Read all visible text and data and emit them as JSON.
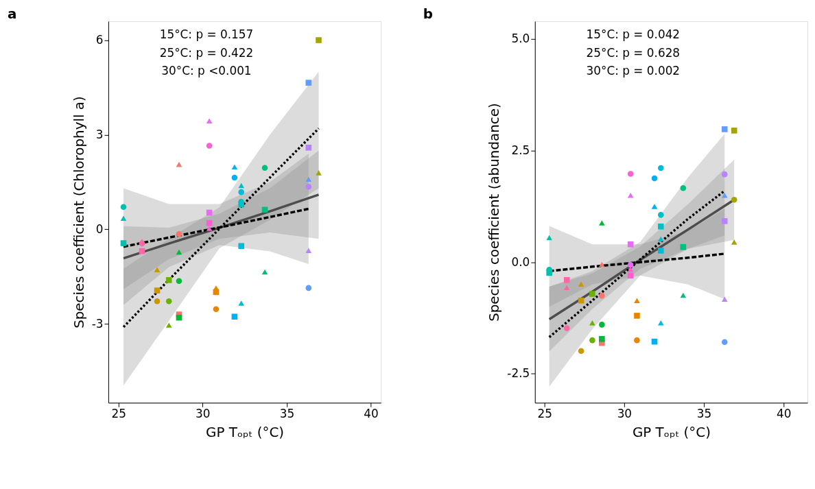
{
  "chart_data": [
    {
      "type": "scatter",
      "title": "a",
      "xlabel": "GP Tₒₚₜ (°C)",
      "ylabel": "Species coefficient (Chlorophyll a)",
      "annotations": [
        "15°C: p = 0.157",
        "25°C: p = 0.422",
        "30°C: p <0.001"
      ],
      "xlim": [
        24.4,
        40.6
      ],
      "xticks": [
        25,
        30,
        35,
        40
      ],
      "ylim": [
        -5.5,
        6.6
      ],
      "yticks": [
        -3,
        0,
        3,
        6
      ],
      "grid": false,
      "legend": false,
      "series": [
        {
          "type": "line",
          "line_style": "solid",
          "marker": "none",
          "color": "#4d4d4d",
          "x": [
            25.3,
            28,
            31,
            34,
            36.9
          ],
          "values": [
            -0.92,
            -0.45,
            0.05,
            0.57,
            1.1
          ],
          "lower": [
            -1.9,
            -0.95,
            -0.3,
            -0.1,
            -0.3
          ],
          "upper": [
            0.1,
            0.05,
            0.5,
            1.3,
            2.5
          ]
        },
        {
          "type": "line",
          "line_style": "dashed",
          "marker": "none",
          "color": "#000000",
          "x": [
            25.3,
            28,
            31,
            34,
            36.3
          ],
          "values": [
            -0.55,
            -0.26,
            0.06,
            0.39,
            0.65
          ],
          "lower": [
            -2.4,
            -1.2,
            -0.5,
            -0.7,
            -1.1
          ],
          "upper": [
            1.3,
            0.8,
            0.8,
            1.5,
            2.4
          ]
        },
        {
          "type": "line",
          "line_style": "dotted",
          "marker": "none",
          "color": "#000000",
          "x": [
            25.3,
            28,
            31,
            34,
            36.9
          ],
          "values": [
            -3.1,
            -1.6,
            0.02,
            1.64,
            3.2
          ],
          "lower": [
            -4.95,
            -2.9,
            -0.6,
            0.3,
            1.3
          ],
          "upper": [
            -1.25,
            -0.3,
            0.7,
            3.0,
            5.0
          ]
        },
        {
          "type": "scatter",
          "marker": "circle",
          "x": [
            25.3,
            26.4,
            27.3,
            28.0,
            28.6,
            28.6,
            30.4,
            30.8,
            31.9,
            32.3,
            32.3,
            33.7,
            36.3,
            36.3
          ],
          "values": [
            0.71,
            -0.45,
            -2.28,
            -2.28,
            -0.15,
            -1.64,
            2.65,
            -2.53,
            1.64,
            1.18,
            0.87,
            1.95,
            -1.86,
            1.35
          ],
          "colors": [
            "#00c0af",
            "#ff67a4",
            "#c99800",
            "#6bb100",
            "#f8766d",
            "#00ba38",
            "#fd61d1",
            "#e58700",
            "#00b0f6",
            "#00bcd8",
            "#00bfc4",
            "#00bf7d",
            "#619cff",
            "#b983ff"
          ]
        },
        {
          "type": "scatter",
          "marker": "triangle",
          "x": [
            25.3,
            26.4,
            27.3,
            28.0,
            28.6,
            28.6,
            30.4,
            30.4,
            30.8,
            31.9,
            32.3,
            32.3,
            33.7,
            36.3,
            36.3,
            36.9
          ],
          "values": [
            0.35,
            -0.38,
            -1.28,
            -3.04,
            2.06,
            -0.72,
            3.44,
            0.03,
            -1.86,
            1.98,
            1.39,
            -2.34,
            -1.35,
            1.59,
            -0.67,
            1.79
          ],
          "colors": [
            "#00c0af",
            "#ff67a4",
            "#c99800",
            "#6bb100",
            "#f8766d",
            "#00ba38",
            "#e76bf3",
            "#fd61d1",
            "#e58700",
            "#00b0f6",
            "#00bfc4",
            "#00bcd8",
            "#00bf7d",
            "#619cff",
            "#b983ff",
            "#a3a500"
          ]
        },
        {
          "type": "scatter",
          "marker": "square",
          "x": [
            25.3,
            26.4,
            27.3,
            28.0,
            28.6,
            28.6,
            30.4,
            30.4,
            30.8,
            31.9,
            32.3,
            32.3,
            33.7,
            36.3,
            36.3,
            36.9
          ],
          "values": [
            -0.44,
            -0.69,
            -1.94,
            -1.61,
            -2.7,
            -2.8,
            0.53,
            0.2,
            -1.99,
            -2.77,
            0.79,
            -0.53,
            0.62,
            4.65,
            2.59,
            6.0
          ],
          "colors": [
            "#00c0af",
            "#ff67a4",
            "#c99800",
            "#6bb100",
            "#f8766d",
            "#00ba38",
            "#e76bf3",
            "#fd61d1",
            "#e58700",
            "#00b0f6",
            "#00bfc4",
            "#00bcd8",
            "#00bf7d",
            "#619cff",
            "#b983ff",
            "#a3a500"
          ]
        }
      ]
    },
    {
      "type": "scatter",
      "title": "b",
      "xlabel": "GP Tₒₚₜ (°C)",
      "ylabel": "Species coefficient (abundance)",
      "annotations": [
        "15°C: p = 0.042",
        "25°C: p = 0.628",
        "30°C: p = 0.002"
      ],
      "xlim": [
        24.4,
        41.5
      ],
      "xticks": [
        25,
        30,
        35,
        40
      ],
      "ylim": [
        -3.15,
        5.4
      ],
      "yticks": [
        -2.5,
        {
          "value": 0,
          "label": "0.0"
        },
        2.5,
        {
          "value": 5,
          "label": "5.0"
        }
      ],
      "grid": false,
      "legend": false,
      "series": [
        {
          "type": "line",
          "line_style": "solid",
          "marker": "none",
          "color": "#4d4d4d",
          "x": [
            25.3,
            28,
            31,
            34,
            36.9
          ],
          "values": [
            -1.28,
            -0.66,
            0.05,
            0.73,
            1.4
          ],
          "lower": [
            -2.0,
            -1.05,
            -0.15,
            0.3,
            0.5
          ],
          "upper": [
            -0.55,
            -0.25,
            0.35,
            1.3,
            2.3
          ]
        },
        {
          "type": "line",
          "line_style": "dashed",
          "marker": "none",
          "color": "#000000",
          "x": [
            25.3,
            28,
            31,
            34,
            36.3
          ],
          "values": [
            -0.2,
            -0.1,
            0.0,
            0.1,
            0.19
          ],
          "lower": [
            -1.0,
            -0.5,
            -0.3,
            -0.5,
            -0.83
          ],
          "upper": [
            0.81,
            0.4,
            0.4,
            0.7,
            1.2
          ]
        },
        {
          "type": "line",
          "line_style": "dotted",
          "marker": "none",
          "color": "#000000",
          "x": [
            25.3,
            28,
            31,
            34,
            36.3
          ],
          "values": [
            -1.68,
            -0.86,
            0.06,
            0.97,
            1.6
          ],
          "lower": [
            -2.79,
            -1.5,
            -0.3,
            0.3,
            0.6
          ],
          "upper": [
            -0.55,
            -0.2,
            0.45,
            1.9,
            2.88
          ]
        },
        {
          "type": "scatter",
          "marker": "circle",
          "x": [
            25.3,
            26.4,
            27.3,
            28.0,
            28.6,
            28.6,
            30.4,
            30.4,
            30.8,
            31.9,
            32.3,
            32.3,
            33.7,
            36.3,
            36.3,
            36.9
          ],
          "values": [
            -0.17,
            -1.48,
            -1.99,
            -1.75,
            -0.75,
            -1.4,
            1.98,
            -0.06,
            -1.75,
            1.88,
            2.11,
            1.06,
            1.66,
            -1.79,
            1.97,
            1.4
          ],
          "colors": [
            "#00c0af",
            "#ff67a4",
            "#c99800",
            "#6bb100",
            "#f8766d",
            "#00ba38",
            "#fd61d1",
            "#e76bf3",
            "#e58700",
            "#00b0f6",
            "#00bcd8",
            "#00bfc4",
            "#00bf7d",
            "#619cff",
            "#b983ff",
            "#a3a500"
          ]
        },
        {
          "type": "scatter",
          "marker": "triangle",
          "x": [
            25.3,
            26.4,
            27.3,
            28.0,
            28.6,
            28.6,
            30.4,
            30.4,
            30.8,
            31.9,
            32.3,
            32.3,
            33.7,
            36.3,
            36.3,
            36.9
          ],
          "values": [
            0.55,
            -0.57,
            -0.49,
            -1.36,
            -0.05,
            0.88,
            1.5,
            -0.16,
            -0.86,
            1.25,
            0.52,
            -1.36,
            -0.74,
            1.5,
            -0.83,
            0.45
          ],
          "colors": [
            "#00c0af",
            "#ff67a4",
            "#c99800",
            "#6bb100",
            "#f8766d",
            "#00ba38",
            "#e76bf3",
            "#fd61d1",
            "#e58700",
            "#00b0f6",
            "#00bfc4",
            "#00bcd8",
            "#00bf7d",
            "#619cff",
            "#b983ff",
            "#a3a500"
          ]
        },
        {
          "type": "scatter",
          "marker": "square",
          "x": [
            25.3,
            26.4,
            27.3,
            28.0,
            28.6,
            28.6,
            30.4,
            30.4,
            30.8,
            31.9,
            32.3,
            32.3,
            33.7,
            36.3,
            36.3,
            36.9
          ],
          "values": [
            -0.24,
            -0.4,
            -0.86,
            -0.71,
            -1.81,
            -1.72,
            0.4,
            -0.3,
            -1.2,
            -1.78,
            0.8,
            0.26,
            0.34,
            2.98,
            0.92,
            2.95
          ],
          "colors": [
            "#00c0af",
            "#ff67a4",
            "#c99800",
            "#6bb100",
            "#f8766d",
            "#00ba38",
            "#e76bf3",
            "#fd61d1",
            "#e58700",
            "#00b0f6",
            "#00bfc4",
            "#00bcd8",
            "#00bf7d",
            "#619cff",
            "#b983ff",
            "#a3a500"
          ]
        }
      ]
    }
  ]
}
